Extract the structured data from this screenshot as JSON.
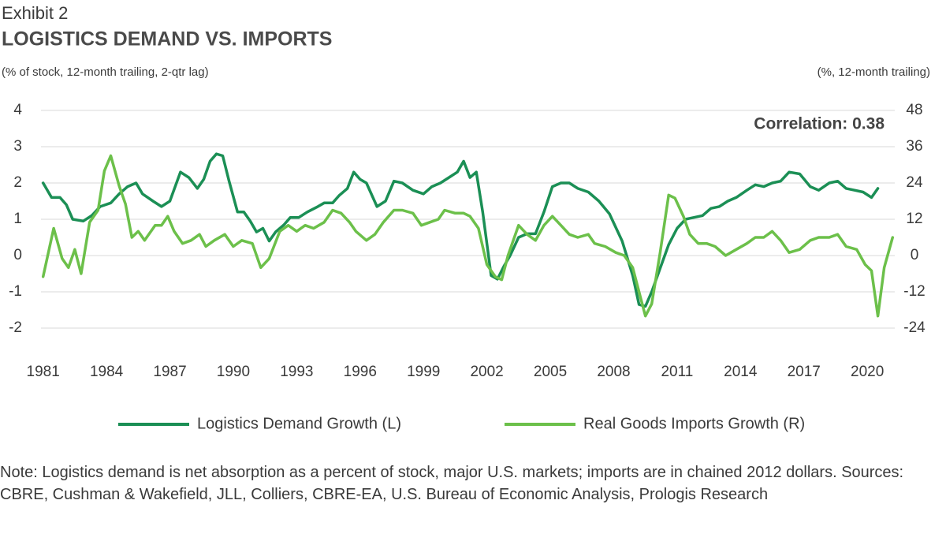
{
  "chart_data": {
    "type": "line",
    "exhibit": "Exhibit 2",
    "title": "LOGISTICS DEMAND VS. IMPORTS",
    "ylabel": "(% of stock, 12-month trailing, 2-qtr lag)",
    "y2label": "(%, 12-month trailing)",
    "annotation": "Correlation: 0.38",
    "note": "Note: Logistics demand is net absorption as a percent of stock, major U.S. markets; imports are in chained 2012 dollars. Sources: CBRE, Cushman & Wakefield, JLL, Colliers, CBRE-EA, U.S. Bureau of Economic Analysis, Prologis Research",
    "xlim": [
      1980.9,
      2021.3
    ],
    "xticks": [
      1981,
      1984,
      1987,
      1990,
      1993,
      1996,
      1999,
      2002,
      2005,
      2008,
      2011,
      2014,
      2017,
      2020
    ],
    "ylim": [
      -2,
      4
    ],
    "yticks": [
      -2,
      -1,
      0,
      1,
      2,
      3,
      4
    ],
    "y2lim": [
      -24,
      48
    ],
    "y2ticks": [
      -24,
      -12,
      0,
      12,
      24,
      36,
      48
    ],
    "grid": true,
    "series": [
      {
        "name": "Logistics Demand Growth (L)",
        "color": "#1b8f55",
        "axis": "y",
        "x": [
          1981.0,
          1981.4,
          1981.8,
          1982.1,
          1982.4,
          1982.9,
          1983.3,
          1983.7,
          1984.2,
          1984.6,
          1985.0,
          1985.4,
          1985.7,
          1986.2,
          1986.6,
          1987.0,
          1987.5,
          1987.9,
          1988.3,
          1988.6,
          1988.9,
          1989.2,
          1989.5,
          1989.8,
          1990.2,
          1990.5,
          1990.8,
          1991.1,
          1991.4,
          1991.7,
          1992.0,
          1992.4,
          1992.7,
          1993.1,
          1993.5,
          1994.0,
          1994.3,
          1994.7,
          1995.0,
          1995.4,
          1995.7,
          1996.0,
          1996.3,
          1996.8,
          1997.2,
          1997.6,
          1998.0,
          1998.5,
          1999.0,
          1999.4,
          1999.8,
          2000.2,
          2000.6,
          2000.9,
          2001.2,
          2001.5,
          2001.8,
          2002.2,
          2002.5,
          2002.8,
          2003.1,
          2003.5,
          2003.9,
          2004.3,
          2004.7,
          2005.1,
          2005.5,
          2005.9,
          2006.3,
          2006.8,
          2007.3,
          2007.8,
          2008.4,
          2008.9,
          2009.2,
          2009.5,
          2009.8,
          2010.2,
          2010.6,
          2011.0,
          2011.4,
          2011.8,
          2012.2,
          2012.6,
          2013.0,
          2013.4,
          2013.8,
          2014.3,
          2014.7,
          2015.1,
          2015.5,
          2015.9,
          2016.3,
          2016.8,
          2017.3,
          2017.7,
          2018.2,
          2018.6,
          2019.0,
          2019.4,
          2019.8,
          2020.2,
          2020.5
        ],
        "values": [
          2.0,
          1.6,
          1.6,
          1.4,
          1.0,
          0.95,
          1.1,
          1.35,
          1.45,
          1.7,
          1.9,
          2.0,
          1.7,
          1.5,
          1.35,
          1.5,
          2.3,
          2.15,
          1.85,
          2.1,
          2.6,
          2.8,
          2.75,
          2.05,
          1.2,
          1.2,
          0.95,
          0.65,
          0.75,
          0.4,
          0.65,
          0.85,
          1.05,
          1.05,
          1.2,
          1.35,
          1.45,
          1.45,
          1.65,
          1.85,
          2.3,
          2.1,
          2.0,
          1.35,
          1.5,
          2.05,
          2.0,
          1.8,
          1.7,
          1.9,
          2.0,
          2.15,
          2.3,
          2.6,
          2.15,
          2.3,
          1.2,
          -0.55,
          -0.65,
          -0.3,
          0.0,
          0.5,
          0.6,
          0.6,
          1.2,
          1.9,
          2.0,
          2.0,
          1.85,
          1.75,
          1.5,
          1.15,
          0.4,
          -0.55,
          -1.35,
          -1.4,
          -1.0,
          -0.35,
          0.3,
          0.75,
          1.0,
          1.05,
          1.1,
          1.3,
          1.35,
          1.5,
          1.6,
          1.8,
          1.95,
          1.9,
          2.0,
          2.05,
          2.3,
          2.25,
          1.9,
          1.8,
          2.0,
          2.05,
          1.85,
          1.8,
          1.75,
          1.6,
          1.85
        ]
      },
      {
        "name": "Real Goods Imports Growth (R)",
        "color": "#6cc04a",
        "axis": "y2",
        "x": [
          1981.0,
          1981.5,
          1981.9,
          1982.2,
          1982.5,
          1982.8,
          1983.2,
          1983.6,
          1983.9,
          1984.2,
          1984.6,
          1984.9,
          1985.2,
          1985.5,
          1985.8,
          1986.3,
          1986.6,
          1986.9,
          1987.2,
          1987.6,
          1988.0,
          1988.4,
          1988.7,
          1989.1,
          1989.6,
          1990.0,
          1990.4,
          1990.9,
          1991.3,
          1991.7,
          1992.2,
          1992.6,
          1993.0,
          1993.4,
          1993.8,
          1994.3,
          1994.7,
          1995.1,
          1995.5,
          1995.8,
          1996.3,
          1996.7,
          1997.1,
          1997.6,
          1998.0,
          1998.5,
          1998.9,
          1999.3,
          1999.7,
          2000.0,
          2000.5,
          2000.9,
          2001.2,
          2001.6,
          2002.0,
          2002.4,
          2002.7,
          2003.0,
          2003.5,
          2003.9,
          2004.3,
          2004.7,
          2005.1,
          2005.5,
          2005.9,
          2006.3,
          2006.8,
          2007.1,
          2007.6,
          2008.1,
          2008.5,
          2008.9,
          2009.2,
          2009.5,
          2009.8,
          2010.2,
          2010.6,
          2010.9,
          2011.3,
          2011.6,
          2012.0,
          2012.4,
          2012.8,
          2013.3,
          2013.8,
          2014.3,
          2014.7,
          2015.1,
          2015.5,
          2015.9,
          2016.3,
          2016.8,
          2017.3,
          2017.7,
          2018.2,
          2018.6,
          2019.0,
          2019.5,
          2019.9,
          2020.2,
          2020.5,
          2020.8,
          2021.2
        ],
        "values": [
          -7,
          9,
          -1,
          -4,
          2,
          -6,
          11,
          15,
          28,
          33,
          23,
          17,
          6,
          8,
          5,
          10,
          10,
          13,
          8,
          4,
          5,
          7,
          3,
          5,
          7,
          3,
          5,
          4,
          -4,
          -1,
          8,
          10,
          8,
          10,
          9,
          11,
          15,
          14,
          11,
          8,
          5,
          7,
          11,
          15,
          15,
          14,
          10,
          11,
          12,
          15,
          14,
          14,
          13,
          9,
          -3,
          -7,
          -8,
          0,
          10,
          7,
          5,
          10,
          13,
          10,
          7,
          6,
          7,
          4,
          3,
          1,
          0,
          -4,
          -12,
          -20,
          -16,
          1,
          20,
          19,
          13,
          7,
          4,
          4,
          3,
          0,
          2,
          4,
          6,
          6,
          8,
          5,
          1,
          2,
          5,
          6,
          6,
          7,
          3,
          2,
          -3,
          -5,
          -20,
          -4,
          6
        ]
      }
    ]
  }
}
